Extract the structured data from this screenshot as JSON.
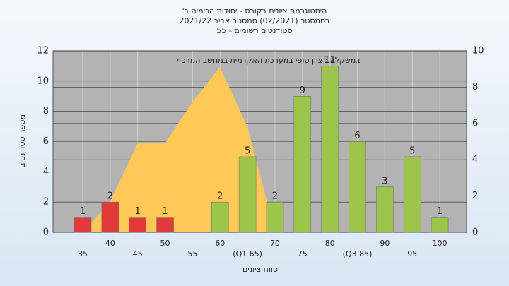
{
  "chart_data": {
    "type": "bar",
    "title": [
      "היסטוגרמת ציונים בקורס - יסודות הכימיה ב'",
      "בסמסטר (02/2021) סמסטר אביב 2021/22",
      "סטודנטים רשומים - 55"
    ],
    "annotation": "במשקלה : ציון סופי במערכת האקדמית במחשב המרכזי",
    "y_label": "מספר סטודנטים",
    "x_label": "טווח ציונים",
    "categories": [
      "35",
      "40",
      "45",
      "50",
      "55",
      "60",
      "(Q1 65)",
      "70",
      "75",
      "80",
      "(Q3 85)",
      "90",
      "95",
      "100"
    ],
    "series": [
      {
        "values": [
          1,
          2,
          1,
          1,
          0,
          2,
          5,
          2,
          9,
          11,
          6,
          3,
          5,
          1
        ],
        "colors": [
          "#e23a3a",
          "#e23a3a",
          "#e23a3a",
          "#e23a3a",
          "#e23a3a",
          "#9dc54c",
          "#9dc54c",
          "#9dc54c",
          "#9dc54c",
          "#9dc54c",
          "#9dc54c",
          "#9dc54c",
          "#9dc54c",
          "#9dc54c"
        ]
      },
      {
        "type": "area",
        "axis": "y2",
        "color": "#ffc857",
        "values": [
          0,
          1.7,
          4.9,
          4.9,
          7.2,
          9.1,
          5.8,
          0,
          null,
          null,
          null,
          null,
          null,
          null
        ]
      }
    ],
    "ylim": [
      0,
      12
    ],
    "yticks": [
      0,
      2,
      4,
      6,
      8,
      10,
      12
    ],
    "y2lim": [
      0,
      10
    ],
    "y2ticks": [
      0,
      2,
      4,
      6,
      8,
      10
    ],
    "grid": true
  }
}
